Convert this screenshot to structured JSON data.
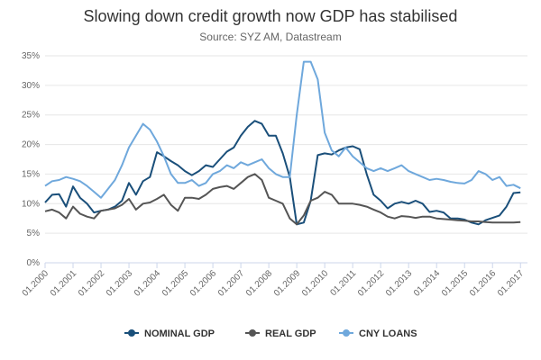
{
  "chart_data": {
    "type": "line",
    "title": "Slowing down credit growth now GDP has stabilised",
    "subtitle": "Source: SYZ AM, Datastream",
    "xlabel": "",
    "ylabel": "",
    "x_tick_labels": [
      "01.2000",
      "01.2001",
      "01.2002",
      "01.2003",
      "01.2004",
      "01.2005",
      "01.2006",
      "01.2007",
      "01.2008",
      "01.2009",
      "01.2010",
      "01.2011",
      "01.2012",
      "01.2013",
      "01.2014",
      "01.2015",
      "01.2016",
      "01.2017"
    ],
    "y_tick_labels": [
      "0%",
      "5%",
      "10%",
      "15%",
      "20%",
      "25%",
      "30%",
      "35%"
    ],
    "ylim": [
      0,
      35
    ],
    "grid": true,
    "legend_position": "bottom-center",
    "series": [
      {
        "name": "NOMINAL GDP",
        "color": "#1a4f7a",
        "x": [
          "2000-01",
          "2000-04",
          "2000-07",
          "2000-10",
          "2001-01",
          "2001-04",
          "2001-07",
          "2001-10",
          "2002-01",
          "2002-04",
          "2002-07",
          "2002-10",
          "2003-01",
          "2003-04",
          "2003-07",
          "2003-10",
          "2004-01",
          "2004-04",
          "2004-07",
          "2004-10",
          "2005-01",
          "2005-04",
          "2005-07",
          "2005-10",
          "2006-01",
          "2006-04",
          "2006-07",
          "2006-10",
          "2007-01",
          "2007-04",
          "2007-07",
          "2007-10",
          "2008-01",
          "2008-04",
          "2008-07",
          "2008-10",
          "2009-01",
          "2009-04",
          "2009-07",
          "2009-10",
          "2010-01",
          "2010-04",
          "2010-07",
          "2010-10",
          "2011-01",
          "2011-04",
          "2011-07",
          "2011-10",
          "2012-01",
          "2012-04",
          "2012-07",
          "2012-10",
          "2013-01",
          "2013-04",
          "2013-07",
          "2013-10",
          "2014-01",
          "2014-04",
          "2014-07",
          "2014-10",
          "2015-01",
          "2015-04",
          "2015-07",
          "2015-10",
          "2016-01",
          "2016-04",
          "2016-07",
          "2016-10",
          "2017-01"
        ],
        "values": [
          10.2,
          11.5,
          11.6,
          9.5,
          12.9,
          11.0,
          10.0,
          8.5,
          8.8,
          9.0,
          9.5,
          10.5,
          13.5,
          11.5,
          13.8,
          14.5,
          18.7,
          18.0,
          17.2,
          16.5,
          15.5,
          14.8,
          15.5,
          16.5,
          16.2,
          17.5,
          18.8,
          19.5,
          21.5,
          23.0,
          24.0,
          23.5,
          21.5,
          21.5,
          18.5,
          14.5,
          6.5,
          6.8,
          10.5,
          18.2,
          18.5,
          18.3,
          19.0,
          19.5,
          19.7,
          19.2,
          15.0,
          11.5,
          10.5,
          9.2,
          10.0,
          10.3,
          10.0,
          10.5,
          10.0,
          8.6,
          8.8,
          8.5,
          7.5,
          7.5,
          7.3,
          6.8,
          6.5,
          7.2,
          7.6,
          8.0,
          9.5,
          11.8,
          11.9
        ]
      },
      {
        "name": "REAL GDP",
        "color": "#555555",
        "x": [
          "2000-01",
          "2000-04",
          "2000-07",
          "2000-10",
          "2001-01",
          "2001-04",
          "2001-07",
          "2001-10",
          "2002-01",
          "2002-04",
          "2002-07",
          "2002-10",
          "2003-01",
          "2003-04",
          "2003-07",
          "2003-10",
          "2004-01",
          "2004-04",
          "2004-07",
          "2004-10",
          "2005-01",
          "2005-04",
          "2005-07",
          "2005-10",
          "2006-01",
          "2006-04",
          "2006-07",
          "2006-10",
          "2007-01",
          "2007-04",
          "2007-07",
          "2007-10",
          "2008-01",
          "2008-04",
          "2008-07",
          "2008-10",
          "2009-01",
          "2009-04",
          "2009-07",
          "2009-10",
          "2010-01",
          "2010-04",
          "2010-07",
          "2010-10",
          "2011-01",
          "2011-04",
          "2011-07",
          "2011-10",
          "2012-01",
          "2012-04",
          "2012-07",
          "2012-10",
          "2013-01",
          "2013-04",
          "2013-07",
          "2013-10",
          "2014-01",
          "2014-04",
          "2014-07",
          "2014-10",
          "2015-01",
          "2015-04",
          "2015-07",
          "2015-10",
          "2016-01",
          "2016-04",
          "2016-07",
          "2016-10",
          "2017-01"
        ],
        "values": [
          8.7,
          9.0,
          8.5,
          7.5,
          9.5,
          8.3,
          7.8,
          7.5,
          8.8,
          9.0,
          9.2,
          9.8,
          10.8,
          9.0,
          10.0,
          10.2,
          10.8,
          11.5,
          9.8,
          8.8,
          11.0,
          11.0,
          10.8,
          11.5,
          12.5,
          12.8,
          13.0,
          12.5,
          13.5,
          14.5,
          15.0,
          14.0,
          11.0,
          10.5,
          10.0,
          7.5,
          6.5,
          8.0,
          10.5,
          11.0,
          12.0,
          11.5,
          10.0,
          10.0,
          10.0,
          9.8,
          9.5,
          9.0,
          8.5,
          7.8,
          7.5,
          7.9,
          7.8,
          7.6,
          7.8,
          7.8,
          7.5,
          7.4,
          7.3,
          7.2,
          7.1,
          7.0,
          7.0,
          6.9,
          6.8,
          6.8,
          6.8,
          6.8,
          6.9
        ]
      },
      {
        "name": "CNY LOANS",
        "color": "#6fa8dc",
        "x": [
          "2000-01",
          "2000-04",
          "2000-07",
          "2000-10",
          "2001-01",
          "2001-04",
          "2001-07",
          "2001-10",
          "2002-01",
          "2002-04",
          "2002-07",
          "2002-10",
          "2003-01",
          "2003-04",
          "2003-07",
          "2003-10",
          "2004-01",
          "2004-04",
          "2004-07",
          "2004-10",
          "2005-01",
          "2005-04",
          "2005-07",
          "2005-10",
          "2006-01",
          "2006-04",
          "2006-07",
          "2006-10",
          "2007-01",
          "2007-04",
          "2007-07",
          "2007-10",
          "2008-01",
          "2008-04",
          "2008-07",
          "2008-10",
          "2009-01",
          "2009-04",
          "2009-07",
          "2009-10",
          "2010-01",
          "2010-04",
          "2010-07",
          "2010-10",
          "2011-01",
          "2011-04",
          "2011-07",
          "2011-10",
          "2012-01",
          "2012-04",
          "2012-07",
          "2012-10",
          "2013-01",
          "2013-04",
          "2013-07",
          "2013-10",
          "2014-01",
          "2014-04",
          "2014-07",
          "2014-10",
          "2015-01",
          "2015-04",
          "2015-07",
          "2015-10",
          "2016-01",
          "2016-04",
          "2016-07",
          "2016-10",
          "2017-01"
        ],
        "values": [
          13.0,
          13.8,
          14.0,
          14.5,
          14.2,
          13.8,
          13.0,
          12.0,
          11.0,
          12.5,
          14.0,
          16.5,
          19.5,
          21.5,
          23.5,
          22.5,
          20.5,
          18.0,
          15.0,
          13.5,
          13.5,
          14.0,
          13.0,
          13.5,
          15.0,
          15.5,
          16.5,
          16.0,
          17.0,
          16.5,
          17.0,
          17.5,
          16.0,
          15.0,
          14.5,
          14.5,
          25.0,
          34.0,
          34.0,
          31.0,
          22.0,
          19.0,
          18.0,
          19.5,
          18.0,
          17.0,
          16.0,
          15.5,
          16.0,
          15.5,
          16.0,
          16.5,
          15.5,
          15.0,
          14.5,
          14.0,
          14.2,
          14.0,
          13.7,
          13.5,
          13.4,
          14.0,
          15.5,
          15.0,
          14.0,
          14.5,
          13.0,
          13.2,
          12.6
        ]
      }
    ]
  }
}
